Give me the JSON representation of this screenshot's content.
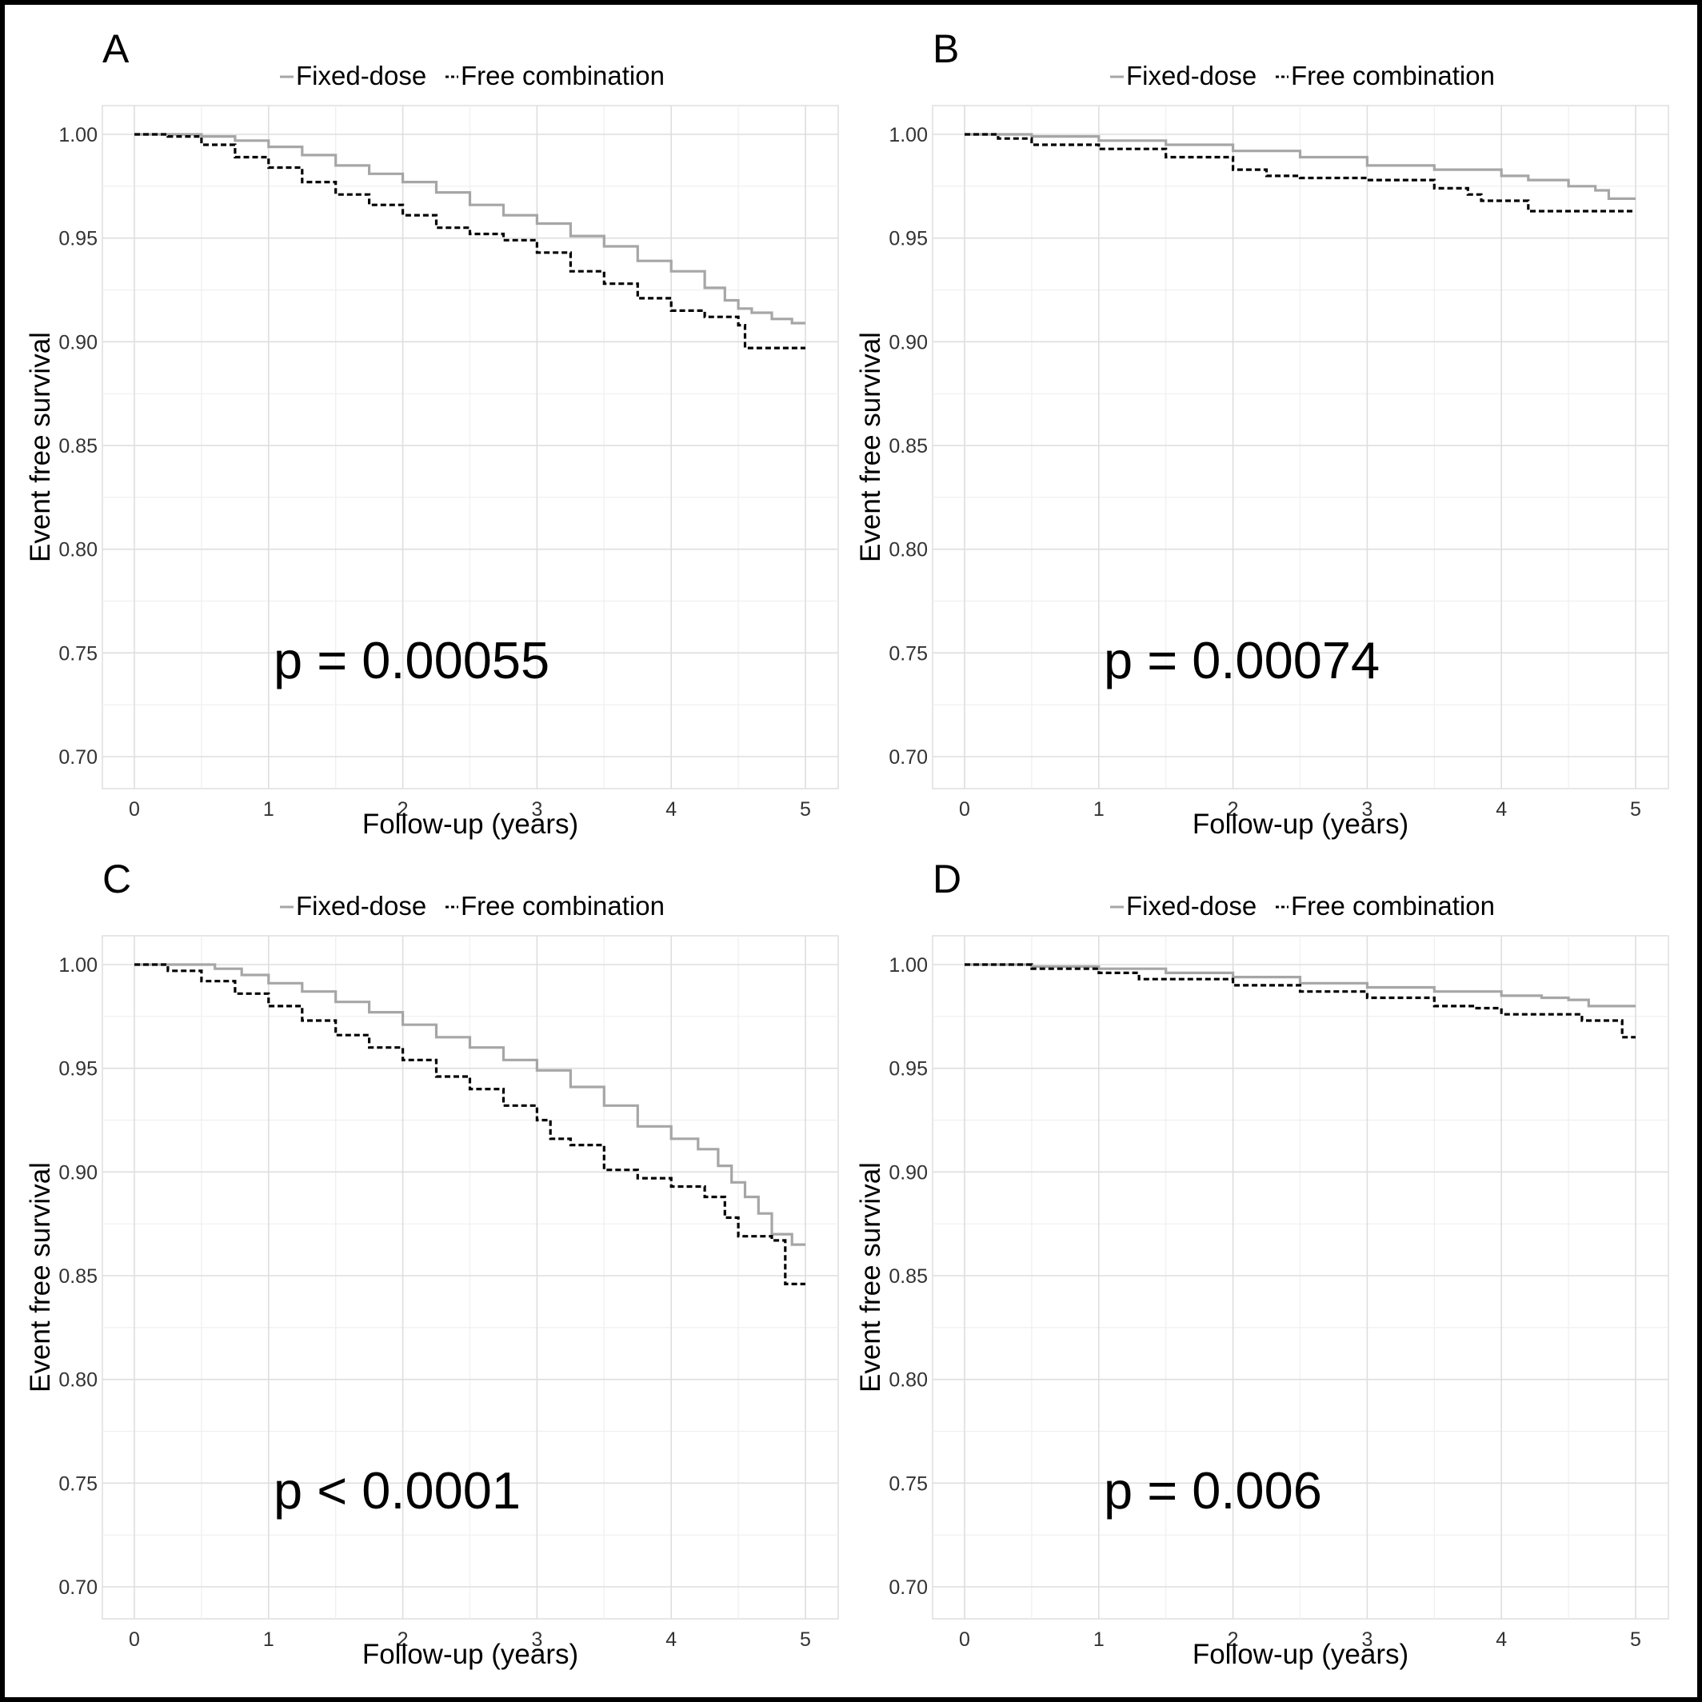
{
  "figure": {
    "legend": {
      "series_a": "Fixed-dose",
      "series_b": "Free combination"
    },
    "colors": {
      "fixed_dose": "#a6a6a6",
      "free_combination": "#000000",
      "grid": "#dedede",
      "grid_minor": "#efefef",
      "text": "#000000",
      "tick_text": "#333333"
    }
  },
  "chart_data": [
    {
      "type": "line",
      "panel_label": "A",
      "annotation": "p = 0.00055",
      "xlabel": "Follow-up (years)",
      "ylabel": "Event free survival",
      "xlim": [
        0,
        5
      ],
      "ylim": [
        0.7,
        1.0
      ],
      "x_ticks": [
        "0",
        "1",
        "2",
        "3",
        "4",
        "5"
      ],
      "y_ticks": [
        "0.70",
        "0.75",
        "0.80",
        "0.85",
        "0.90",
        "0.95",
        "1.00"
      ],
      "legend_position": "top",
      "grid": true,
      "series": [
        {
          "name": "Fixed-dose",
          "style": "solid",
          "x": [
            0,
            0.3,
            0.5,
            0.75,
            1.0,
            1.25,
            1.5,
            1.75,
            2.0,
            2.25,
            2.5,
            2.75,
            3.0,
            3.25,
            3.5,
            3.75,
            4.0,
            4.25,
            4.4,
            4.5,
            4.6,
            4.75,
            4.9,
            5.0
          ],
          "y": [
            1.0,
            1.0,
            0.999,
            0.997,
            0.994,
            0.99,
            0.985,
            0.981,
            0.977,
            0.972,
            0.966,
            0.961,
            0.957,
            0.951,
            0.946,
            0.939,
            0.934,
            0.926,
            0.92,
            0.916,
            0.914,
            0.911,
            0.909,
            0.909
          ]
        },
        {
          "name": "Free combination",
          "style": "dashed",
          "x": [
            0,
            0.25,
            0.5,
            0.75,
            1.0,
            1.25,
            1.5,
            1.75,
            2.0,
            2.25,
            2.5,
            2.75,
            3.0,
            3.25,
            3.5,
            3.75,
            4.0,
            4.25,
            4.5,
            4.55,
            4.75,
            5.0
          ],
          "y": [
            1.0,
            0.999,
            0.995,
            0.989,
            0.984,
            0.977,
            0.971,
            0.966,
            0.961,
            0.955,
            0.952,
            0.949,
            0.943,
            0.934,
            0.928,
            0.921,
            0.915,
            0.912,
            0.908,
            0.897,
            0.897,
            0.897
          ]
        }
      ]
    },
    {
      "type": "line",
      "panel_label": "B",
      "annotation": "p = 0.00074",
      "xlabel": "Follow-up (years)",
      "ylabel": "Event free survival",
      "xlim": [
        0,
        5
      ],
      "ylim": [
        0.7,
        1.0
      ],
      "x_ticks": [
        "0",
        "1",
        "2",
        "3",
        "4",
        "5"
      ],
      "y_ticks": [
        "0.70",
        "0.75",
        "0.80",
        "0.85",
        "0.90",
        "0.95",
        "1.00"
      ],
      "legend_position": "top",
      "grid": true,
      "series": [
        {
          "name": "Fixed-dose",
          "style": "solid",
          "x": [
            0,
            0.5,
            1.0,
            1.5,
            2.0,
            2.5,
            3.0,
            3.5,
            4.0,
            4.2,
            4.5,
            4.7,
            4.8,
            5.0
          ],
          "y": [
            1.0,
            0.999,
            0.997,
            0.995,
            0.992,
            0.989,
            0.985,
            0.983,
            0.98,
            0.978,
            0.975,
            0.973,
            0.969,
            0.969
          ]
        },
        {
          "name": "Free combination",
          "style": "dashed",
          "x": [
            0,
            0.25,
            0.5,
            1.0,
            1.5,
            2.0,
            2.25,
            2.5,
            3.0,
            3.5,
            3.75,
            3.85,
            4.2,
            4.6,
            5.0
          ],
          "y": [
            1.0,
            0.998,
            0.995,
            0.993,
            0.989,
            0.983,
            0.98,
            0.979,
            0.978,
            0.974,
            0.971,
            0.968,
            0.963,
            0.963,
            0.963
          ]
        }
      ]
    },
    {
      "type": "line",
      "panel_label": "C",
      "annotation": "p < 0.0001",
      "xlabel": "Follow-up (years)",
      "ylabel": "Event free survival",
      "xlim": [
        0,
        5
      ],
      "ylim": [
        0.7,
        1.0
      ],
      "x_ticks": [
        "0",
        "1",
        "2",
        "3",
        "4",
        "5"
      ],
      "y_ticks": [
        "0.70",
        "0.75",
        "0.80",
        "0.85",
        "0.90",
        "0.95",
        "1.00"
      ],
      "legend_position": "top",
      "grid": true,
      "series": [
        {
          "name": "Fixed-dose",
          "style": "solid",
          "x": [
            0,
            0.4,
            0.6,
            0.8,
            1.0,
            1.25,
            1.5,
            1.75,
            2.0,
            2.25,
            2.5,
            2.75,
            3.0,
            3.25,
            3.5,
            3.75,
            4.0,
            4.2,
            4.35,
            4.45,
            4.55,
            4.65,
            4.75,
            4.9,
            5.0
          ],
          "y": [
            1.0,
            1.0,
            0.998,
            0.995,
            0.991,
            0.987,
            0.982,
            0.977,
            0.971,
            0.965,
            0.96,
            0.954,
            0.949,
            0.941,
            0.932,
            0.922,
            0.916,
            0.911,
            0.903,
            0.895,
            0.888,
            0.88,
            0.87,
            0.865,
            0.865
          ]
        },
        {
          "name": "Free combination",
          "style": "dashed",
          "x": [
            0,
            0.25,
            0.5,
            0.75,
            1.0,
            1.25,
            1.5,
            1.75,
            2.0,
            2.25,
            2.5,
            2.75,
            3.0,
            3.1,
            3.25,
            3.5,
            3.75,
            4.0,
            4.25,
            4.4,
            4.5,
            4.75,
            4.85,
            5.0
          ],
          "y": [
            1.0,
            0.997,
            0.992,
            0.986,
            0.98,
            0.973,
            0.966,
            0.96,
            0.954,
            0.946,
            0.94,
            0.932,
            0.925,
            0.916,
            0.913,
            0.901,
            0.897,
            0.893,
            0.888,
            0.878,
            0.869,
            0.867,
            0.846,
            0.846
          ]
        }
      ]
    },
    {
      "type": "line",
      "panel_label": "D",
      "annotation": "p = 0.006",
      "xlabel": "Follow-up (years)",
      "ylabel": "Event free survival",
      "xlim": [
        0,
        5
      ],
      "ylim": [
        0.7,
        1.0
      ],
      "x_ticks": [
        "0",
        "1",
        "2",
        "3",
        "4",
        "5"
      ],
      "y_ticks": [
        "0.70",
        "0.75",
        "0.80",
        "0.85",
        "0.90",
        "0.95",
        "1.00"
      ],
      "legend_position": "top",
      "grid": true,
      "series": [
        {
          "name": "Fixed-dose",
          "style": "solid",
          "x": [
            0,
            0.5,
            1.0,
            1.5,
            2.0,
            2.5,
            3.0,
            3.5,
            4.0,
            4.3,
            4.5,
            4.65,
            5.0
          ],
          "y": [
            1.0,
            0.999,
            0.998,
            0.996,
            0.994,
            0.991,
            0.989,
            0.987,
            0.985,
            0.984,
            0.983,
            0.98,
            0.98
          ]
        },
        {
          "name": "Free combination",
          "style": "dashed",
          "x": [
            0,
            0.5,
            1.0,
            1.3,
            1.5,
            2.0,
            2.5,
            3.0,
            3.5,
            3.8,
            4.0,
            4.5,
            4.6,
            4.85,
            4.9,
            5.0
          ],
          "y": [
            1.0,
            0.998,
            0.996,
            0.993,
            0.993,
            0.99,
            0.987,
            0.984,
            0.98,
            0.979,
            0.976,
            0.976,
            0.973,
            0.973,
            0.965,
            0.965
          ]
        }
      ]
    }
  ]
}
